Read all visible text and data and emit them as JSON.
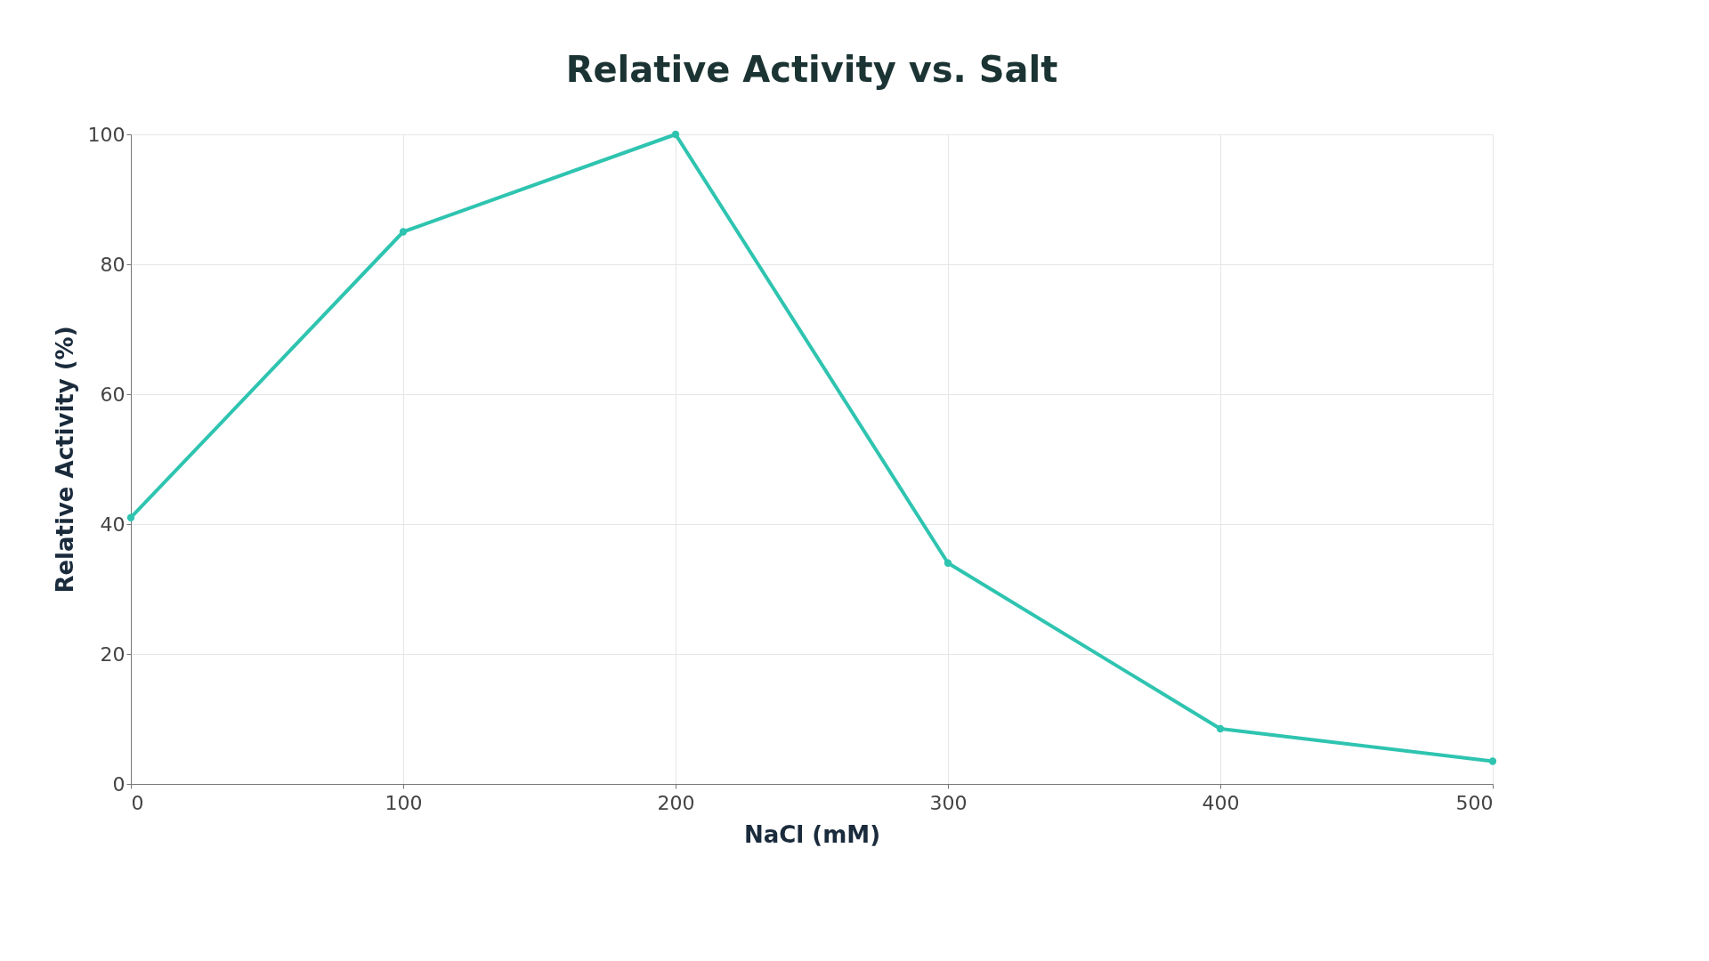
{
  "chart_data": {
    "type": "line",
    "title": "Relative Activity vs. Salt",
    "xlabel": "NaCl (mM)",
    "ylabel": "Relative Activity (%)",
    "x": [
      0,
      100,
      200,
      300,
      400,
      500
    ],
    "series": [
      {
        "color": "#2ec4b0",
        "values": [
          41,
          85,
          100,
          34,
          8.5,
          3.5
        ]
      }
    ],
    "xlim": [
      0,
      500
    ],
    "xticks": [
      0,
      100,
      200,
      300,
      400,
      500
    ],
    "ylim": [
      0,
      100
    ],
    "yticks": [
      0,
      20,
      40,
      60,
      80,
      100
    ],
    "grid": true,
    "marker": "circle",
    "line_style": "solid"
  }
}
